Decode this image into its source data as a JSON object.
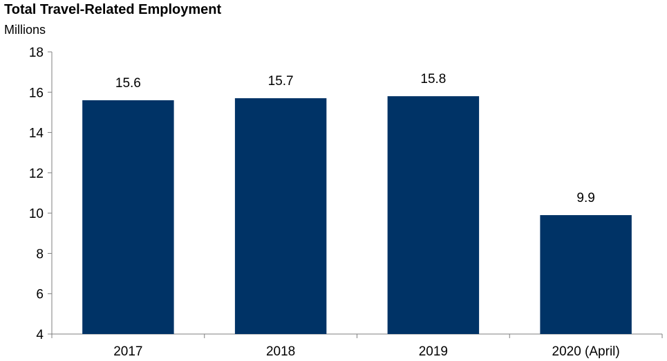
{
  "chart_data": {
    "type": "bar",
    "title": "Total Travel-Related Employment",
    "subtitle": "Millions",
    "xlabel": "",
    "ylabel": "",
    "categories": [
      "2017",
      "2018",
      "2019",
      "2020 (April)"
    ],
    "values": [
      15.6,
      15.7,
      15.8,
      9.9
    ],
    "data_labels": [
      "15.6",
      "15.7",
      "15.8",
      "9.9"
    ],
    "ylim": [
      4,
      18
    ],
    "yticks": [
      4,
      6,
      8,
      10,
      12,
      14,
      16,
      18
    ],
    "grid": false,
    "legend": "none",
    "colors": {
      "bar": "#003366",
      "axis": "#7f7f7f",
      "text": "#000000"
    }
  }
}
